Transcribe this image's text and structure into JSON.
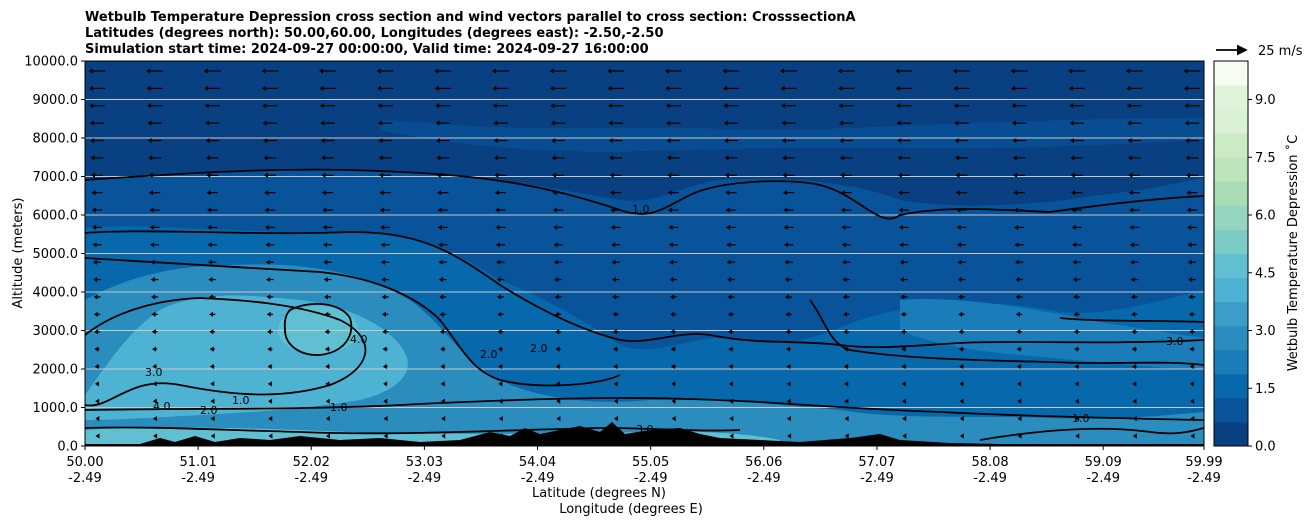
{
  "chart_data": {
    "type": "heatmap",
    "title_lines": [
      "Wetbulb Temperature Depression cross section and wind vectors parallel to cross section: CrosssectionA",
      "Latitudes (degrees north): 50.00,60.00, Longitudes (degrees east): -2.50,-2.50",
      "Simulation start time: 2024-09-27 00:00:00, Valid time: 2024-09-27 16:00:00"
    ],
    "xlabel_lines": [
      "Latitude (degrees N)",
      "Longitude (degrees E)"
    ],
    "ylabel": "Altitude (meters)",
    "x_ticks": [
      {
        "lat": "50.00",
        "lon": "-2.49"
      },
      {
        "lat": "51.01",
        "lon": "-2.49"
      },
      {
        "lat": "52.02",
        "lon": "-2.49"
      },
      {
        "lat": "53.03",
        "lon": "-2.49"
      },
      {
        "lat": "54.04",
        "lon": "-2.49"
      },
      {
        "lat": "55.05",
        "lon": "-2.49"
      },
      {
        "lat": "56.06",
        "lon": "-2.49"
      },
      {
        "lat": "57.07",
        "lon": "-2.49"
      },
      {
        "lat": "58.08",
        "lon": "-2.49"
      },
      {
        "lat": "59.09",
        "lon": "-2.49"
      },
      {
        "lat": "59.99",
        "lon": "-2.49"
      }
    ],
    "x_range": [
      50.0,
      59.99
    ],
    "y_range": [
      0,
      10000
    ],
    "y_ticks": [
      "0.0",
      "1000.0",
      "2000.0",
      "3000.0",
      "4000.0",
      "5000.0",
      "6000.0",
      "7000.0",
      "8000.0",
      "9000.0",
      "10000.0"
    ],
    "y_tick_values": [
      0,
      1000,
      2000,
      3000,
      4000,
      5000,
      6000,
      7000,
      8000,
      9000,
      10000
    ],
    "grid": "horizontal",
    "colorbar": {
      "label": "Wetbulb Temperature Depression $^\\circ$C",
      "label_display": "Wetbulb Temperature Depression ˚C",
      "range": [
        0,
        10
      ],
      "ticks": [
        "0.0",
        "1.5",
        "3.0",
        "4.5",
        "6.0",
        "7.5",
        "9.0"
      ],
      "tick_values": [
        0,
        1.5,
        3.0,
        4.5,
        6.0,
        7.5,
        9.0
      ],
      "colors": [
        "#084081",
        "#08539a",
        "#0868ac",
        "#1b7cba",
        "#2b8cbe",
        "#3c9dc9",
        "#4eb3d3",
        "#61bfd2",
        "#7bccc4",
        "#93d5c0",
        "#a8ddb5",
        "#bce5bc",
        "#ccebc5",
        "#dbf1d6",
        "#e0f3db",
        "#f7fcf0"
      ]
    },
    "wind_key": {
      "label": "25 m/s",
      "speed": 25
    },
    "contour_labels": [
      "1.0",
      "2.0",
      "3.0",
      "4.0"
    ],
    "wind_direction": "westward (negative, along section)"
  }
}
